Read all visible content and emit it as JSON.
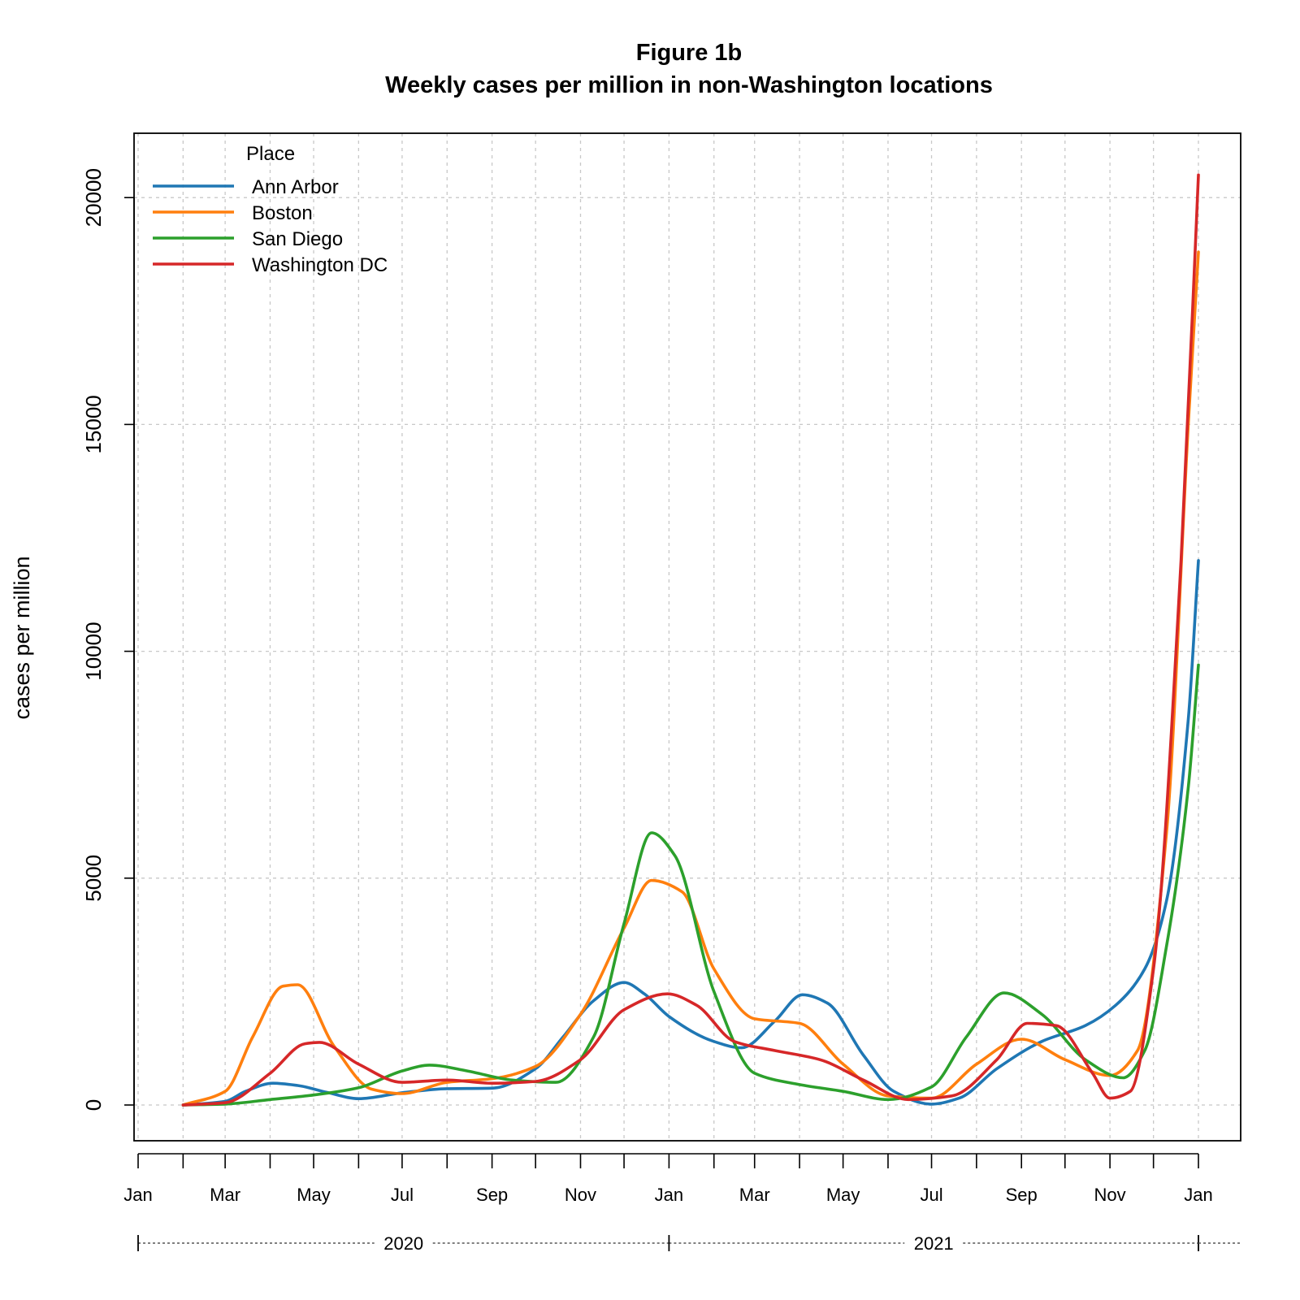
{
  "chart_data": {
    "type": "line",
    "title": "Figure 1b",
    "subtitle": "Weekly cases per million in non-Washington locations",
    "xlabel": "",
    "ylabel": "cases per million",
    "ylim": [
      -800,
      21500
    ],
    "xlim": [
      "2020-01-01",
      "2022-01-01"
    ],
    "yticks": [
      0,
      5000,
      10000,
      15000,
      20000
    ],
    "ytick_labels": [
      "0",
      "5000",
      "10000",
      "15000",
      "20000"
    ],
    "x_month_ticks": [
      "2020-01-01",
      "2020-02-01",
      "2020-03-01",
      "2020-04-01",
      "2020-05-01",
      "2020-06-01",
      "2020-07-01",
      "2020-08-01",
      "2020-09-01",
      "2020-10-01",
      "2020-11-01",
      "2020-12-01",
      "2021-01-01",
      "2021-02-01",
      "2021-03-01",
      "2021-04-01",
      "2021-05-01",
      "2021-06-01",
      "2021-07-01",
      "2021-08-01",
      "2021-09-01",
      "2021-10-01",
      "2021-11-01",
      "2021-12-01",
      "2022-01-01"
    ],
    "x_month_labels": [
      {
        "date": "2020-01-01",
        "label": "Jan"
      },
      {
        "date": "2020-03-01",
        "label": "Mar"
      },
      {
        "date": "2020-05-01",
        "label": "May"
      },
      {
        "date": "2020-07-01",
        "label": "Jul"
      },
      {
        "date": "2020-09-01",
        "label": "Sep"
      },
      {
        "date": "2020-11-01",
        "label": "Nov"
      },
      {
        "date": "2021-01-01",
        "label": "Jan"
      },
      {
        "date": "2021-03-01",
        "label": "Mar"
      },
      {
        "date": "2021-05-01",
        "label": "May"
      },
      {
        "date": "2021-07-01",
        "label": "Jul"
      },
      {
        "date": "2021-09-01",
        "label": "Sep"
      },
      {
        "date": "2021-11-01",
        "label": "Nov"
      },
      {
        "date": "2022-01-01",
        "label": "Jan"
      }
    ],
    "years": [
      {
        "label": "2020",
        "start": "2020-01-01",
        "end": "2021-01-01"
      },
      {
        "label": "2021",
        "start": "2021-01-01",
        "end": "2022-01-01"
      }
    ],
    "grid": true,
    "legend": {
      "title": "Place",
      "position": "top-left"
    },
    "series": [
      {
        "name": "Ann Arbor",
        "color": "#1f77b4",
        "points": [
          [
            "2020-02-01",
            0
          ],
          [
            "2020-03-01",
            80
          ],
          [
            "2020-03-15",
            300
          ],
          [
            "2020-04-03",
            480
          ],
          [
            "2020-04-20",
            430
          ],
          [
            "2020-05-10",
            280
          ],
          [
            "2020-06-01",
            140
          ],
          [
            "2020-07-01",
            270
          ],
          [
            "2020-08-01",
            360
          ],
          [
            "2020-09-01",
            370
          ],
          [
            "2020-10-01",
            800
          ],
          [
            "2020-10-20",
            1500
          ],
          [
            "2020-11-10",
            2300
          ],
          [
            "2020-12-01",
            2700
          ],
          [
            "2020-12-15",
            2450
          ],
          [
            "2021-01-01",
            1950
          ],
          [
            "2021-02-01",
            1400
          ],
          [
            "2021-02-20",
            1260
          ],
          [
            "2021-03-15",
            1850
          ],
          [
            "2021-04-03",
            2430
          ],
          [
            "2021-04-20",
            2250
          ],
          [
            "2021-05-15",
            1100
          ],
          [
            "2021-06-05",
            300
          ],
          [
            "2021-07-01",
            20
          ],
          [
            "2021-07-20",
            150
          ],
          [
            "2021-08-15",
            800
          ],
          [
            "2021-09-15",
            1400
          ],
          [
            "2021-10-15",
            1750
          ],
          [
            "2021-11-05",
            2200
          ],
          [
            "2021-11-25",
            3000
          ],
          [
            "2021-12-10",
            4500
          ],
          [
            "2021-12-25",
            8500
          ],
          [
            "2022-01-01",
            12000
          ]
        ]
      },
      {
        "name": "Boston",
        "color": "#ff7f0e",
        "points": [
          [
            "2020-02-01",
            0
          ],
          [
            "2020-03-01",
            300
          ],
          [
            "2020-03-20",
            1500
          ],
          [
            "2020-04-10",
            2620
          ],
          [
            "2020-04-20",
            2650
          ],
          [
            "2020-05-15",
            1300
          ],
          [
            "2020-06-10",
            350
          ],
          [
            "2020-07-01",
            250
          ],
          [
            "2020-08-01",
            500
          ],
          [
            "2020-09-01",
            580
          ],
          [
            "2020-10-01",
            850
          ],
          [
            "2020-11-01",
            2000
          ],
          [
            "2020-12-01",
            3900
          ],
          [
            "2020-12-20",
            4950
          ],
          [
            "2021-01-10",
            4700
          ],
          [
            "2021-02-01",
            3000
          ],
          [
            "2021-03-01",
            1900
          ],
          [
            "2021-04-01",
            1800
          ],
          [
            "2021-05-01",
            900
          ],
          [
            "2021-06-01",
            200
          ],
          [
            "2021-07-01",
            150
          ],
          [
            "2021-08-01",
            900
          ],
          [
            "2021-09-01",
            1450
          ],
          [
            "2021-10-01",
            1000
          ],
          [
            "2021-11-01",
            650
          ],
          [
            "2021-11-20",
            1200
          ],
          [
            "2021-12-10",
            6000
          ],
          [
            "2021-12-25",
            15000
          ],
          [
            "2022-01-01",
            18800
          ]
        ]
      },
      {
        "name": "San Diego",
        "color": "#2ca02c",
        "points": [
          [
            "2020-02-01",
            0
          ],
          [
            "2020-03-01",
            20
          ],
          [
            "2020-04-01",
            120
          ],
          [
            "2020-05-01",
            220
          ],
          [
            "2020-06-01",
            380
          ],
          [
            "2020-07-01",
            750
          ],
          [
            "2020-07-20",
            880
          ],
          [
            "2020-08-15",
            750
          ],
          [
            "2020-09-15",
            550
          ],
          [
            "2020-10-15",
            500
          ],
          [
            "2020-11-10",
            1500
          ],
          [
            "2020-12-01",
            4000
          ],
          [
            "2020-12-20",
            6000
          ],
          [
            "2021-01-05",
            5500
          ],
          [
            "2021-02-01",
            2500
          ],
          [
            "2021-03-01",
            700
          ],
          [
            "2021-04-01",
            450
          ],
          [
            "2021-05-01",
            300
          ],
          [
            "2021-06-01",
            120
          ],
          [
            "2021-07-01",
            400
          ],
          [
            "2021-07-25",
            1500
          ],
          [
            "2021-08-20",
            2470
          ],
          [
            "2021-09-15",
            2000
          ],
          [
            "2021-10-15",
            1000
          ],
          [
            "2021-11-10",
            600
          ],
          [
            "2021-11-25",
            1200
          ],
          [
            "2021-12-10",
            3500
          ],
          [
            "2021-12-25",
            7000
          ],
          [
            "2022-01-01",
            9700
          ]
        ]
      },
      {
        "name": "Washington DC",
        "color": "#d62728",
        "points": [
          [
            "2020-02-01",
            0
          ],
          [
            "2020-03-01",
            50
          ],
          [
            "2020-04-01",
            700
          ],
          [
            "2020-04-25",
            1350
          ],
          [
            "2020-05-05",
            1380
          ],
          [
            "2020-06-01",
            900
          ],
          [
            "2020-07-01",
            500
          ],
          [
            "2020-08-01",
            550
          ],
          [
            "2020-09-01",
            480
          ],
          [
            "2020-10-01",
            520
          ],
          [
            "2020-11-01",
            1000
          ],
          [
            "2020-12-01",
            2100
          ],
          [
            "2020-12-31",
            2450
          ],
          [
            "2021-01-20",
            2200
          ],
          [
            "2021-02-15",
            1400
          ],
          [
            "2021-03-15",
            1200
          ],
          [
            "2021-04-15",
            1000
          ],
          [
            "2021-05-15",
            550
          ],
          [
            "2021-06-15",
            120
          ],
          [
            "2021-07-15",
            200
          ],
          [
            "2021-08-15",
            1000
          ],
          [
            "2021-09-05",
            1800
          ],
          [
            "2021-09-25",
            1750
          ],
          [
            "2021-10-20",
            700
          ],
          [
            "2021-11-01",
            150
          ],
          [
            "2021-11-15",
            300
          ],
          [
            "2021-12-01",
            3000
          ],
          [
            "2021-12-20",
            12000
          ],
          [
            "2022-01-01",
            20500
          ]
        ]
      }
    ]
  }
}
